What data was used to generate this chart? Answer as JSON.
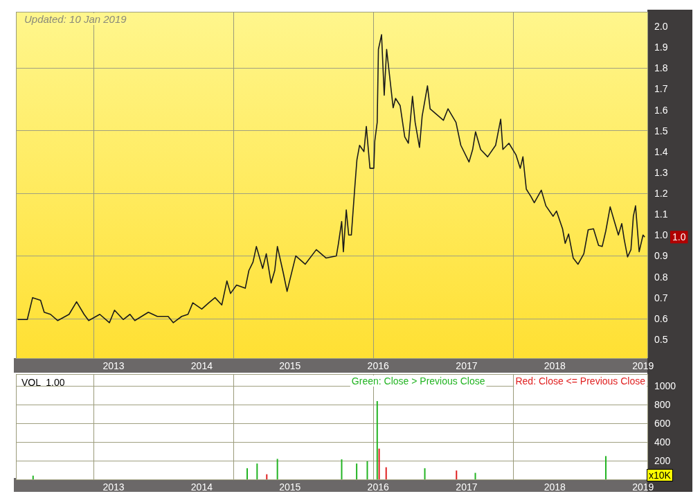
{
  "chart_data": [
    {
      "type": "line",
      "annotations": [
        "Updated: 10 Jan 2019",
        {
          "text": "1.0",
          "x": "2019-01-08",
          "y": 0.99
        }
      ],
      "x": [
        "2011-12-01",
        "2012-01-10",
        "2012-02-01",
        "2012-03-05",
        "2012-03-20",
        "2012-04-15",
        "2012-05-15",
        "2012-07-01",
        "2012-08-01",
        "2012-09-01",
        "2012-09-20",
        "2012-11-05",
        "2012-12-15",
        "2013-01-05",
        "2013-02-10",
        "2013-03-10",
        "2013-03-30",
        "2013-05-25",
        "2013-07-01",
        "2013-08-15",
        "2013-09-05",
        "2013-10-10",
        "2013-11-05",
        "2013-11-25",
        "2014-01-01",
        "2014-01-30",
        "2014-02-25",
        "2014-03-25",
        "2014-04-15",
        "2014-04-30",
        "2014-05-25",
        "2014-06-30",
        "2014-07-15",
        "2014-08-01",
        "2014-08-15",
        "2014-09-10",
        "2014-09-25",
        "2014-10-15",
        "2014-10-30",
        "2014-11-10",
        "2014-12-05",
        "2014-12-20",
        "2015-01-25",
        "2015-03-05",
        "2015-04-20",
        "2015-05-30",
        "2015-07-12",
        "2015-07-20",
        "2015-08-03",
        "2015-08-10",
        "2015-08-22",
        "2015-09-01",
        "2015-09-12",
        "2015-09-27",
        "2015-10-05",
        "2015-10-16",
        "2015-11-03",
        "2015-11-13",
        "2015-11-28",
        "2015-12-14",
        "2015-12-18",
        "2015-12-28",
        "2016-01-02",
        "2016-01-15",
        "2016-01-26",
        "2016-02-05",
        "2016-03-03",
        "2016-03-13",
        "2016-04-01",
        "2016-04-20",
        "2016-05-05",
        "2016-05-22",
        "2016-06-02",
        "2016-06-20",
        "2016-07-01",
        "2016-07-23",
        "2016-08-03",
        "2016-08-28",
        "2016-09-27",
        "2016-10-16",
        "2016-11-18",
        "2016-12-08",
        "2017-01-11",
        "2017-01-26",
        "2017-02-07",
        "2017-02-28",
        "2017-03-29",
        "2017-05-01",
        "2017-05-22",
        "2017-05-31",
        "2017-06-25",
        "2017-07-24",
        "2017-08-11",
        "2017-08-22",
        "2017-09-05",
        "2017-09-24",
        "2017-10-08",
        "2017-11-06",
        "2017-11-25",
        "2017-12-25",
        "2018-01-08",
        "2018-02-02",
        "2018-02-13",
        "2018-02-27",
        "2018-03-18",
        "2018-04-07",
        "2018-05-01",
        "2018-05-19",
        "2018-06-10",
        "2018-07-01",
        "2018-07-16",
        "2018-07-31",
        "2018-08-18",
        "2018-09-02",
        "2018-09-21",
        "2018-10-05",
        "2018-10-15",
        "2018-10-29",
        "2018-11-12",
        "2018-11-22",
        "2018-12-01",
        "2018-12-16",
        "2019-01-01",
        "2019-01-08"
      ],
      "series": [
        {
          "color": "#1a1a1a",
          "values": [
            0.595,
            0.595,
            0.7,
            0.687,
            0.63,
            0.62,
            0.59,
            0.62,
            0.68,
            0.62,
            0.59,
            0.62,
            0.58,
            0.64,
            0.595,
            0.62,
            0.59,
            0.63,
            0.61,
            0.61,
            0.58,
            0.61,
            0.62,
            0.675,
            0.645,
            0.675,
            0.7,
            0.665,
            0.78,
            0.72,
            0.76,
            0.745,
            0.83,
            0.87,
            0.945,
            0.84,
            0.91,
            0.77,
            0.83,
            0.945,
            0.815,
            0.73,
            0.9,
            0.86,
            0.93,
            0.89,
            0.9,
            0.955,
            1.065,
            0.92,
            1.12,
            1.0,
            1.0,
            1.24,
            1.36,
            1.43,
            1.4,
            1.52,
            1.32,
            1.32,
            1.45,
            1.54,
            1.89,
            1.96,
            1.67,
            1.89,
            1.61,
            1.655,
            1.62,
            1.47,
            1.44,
            1.665,
            1.54,
            1.42,
            1.57,
            1.715,
            1.605,
            1.58,
            1.55,
            1.605,
            1.54,
            1.43,
            1.35,
            1.41,
            1.495,
            1.41,
            1.375,
            1.43,
            1.555,
            1.41,
            1.44,
            1.385,
            1.32,
            1.375,
            1.22,
            1.185,
            1.155,
            1.215,
            1.14,
            1.09,
            1.115,
            1.03,
            0.96,
            1.005,
            0.89,
            0.86,
            0.91,
            1.025,
            1.03,
            0.95,
            0.945,
            1.02,
            1.135,
            1.075,
            1.0,
            1.055,
            0.98,
            0.895,
            0.93,
            1.09,
            1.14,
            0.92,
            1.0,
            0.99
          ]
        }
      ],
      "xlim": [
        "2011-11-24",
        "2019-01-19"
      ],
      "xticks": [
        "2013",
        "2014",
        "2015",
        "2016",
        "2017",
        "2018",
        "2019"
      ],
      "ylim": [
        0.41,
        2.07
      ],
      "yticks": [
        0.5,
        0.6,
        0.7,
        0.8,
        0.9,
        {
          "value": 1,
          "label": "1.0"
        },
        1.1,
        1.2,
        1.3,
        1.4,
        1.5,
        1.6,
        1.7,
        1.8,
        1.9,
        {
          "value": 2,
          "label": "2.0"
        }
      ],
      "grid": true
    },
    {
      "type": "bar",
      "title": "VOL  1.00",
      "ylabel": "x10K",
      "series": [
        {
          "name": "Green: Close > Previous Close",
          "color": "#22b422",
          "x": [
            "2012-02-03",
            "2014-07-08",
            "2014-08-18",
            "2014-11-10",
            "2015-08-03",
            "2015-10-04",
            "2015-11-17",
            "2015-12-28",
            "2016-07-12",
            "2017-02-06",
            "2018-07-31"
          ],
          "values": [
            40,
            120,
            170,
            220,
            215,
            170,
            195,
            840,
            120,
            70,
            250
          ]
        },
        {
          "name": "Red: Close <= Previous Close",
          "color": "#e02020",
          "x": [
            "2014-09-27",
            "2016-01-05",
            "2016-02-03",
            "2016-11-20"
          ],
          "values": [
            55,
            330,
            130,
            95
          ]
        }
      ],
      "xlim": [
        "2011-11-24",
        "2019-01-19"
      ],
      "xticks": [
        "2013",
        "2014",
        "2015",
        "2016",
        "2017",
        "2018",
        "2019"
      ],
      "ylim": [
        0,
        1130
      ],
      "yticks": [
        200,
        400,
        600,
        800,
        1000
      ],
      "grid": true,
      "legend": "top right"
    }
  ]
}
